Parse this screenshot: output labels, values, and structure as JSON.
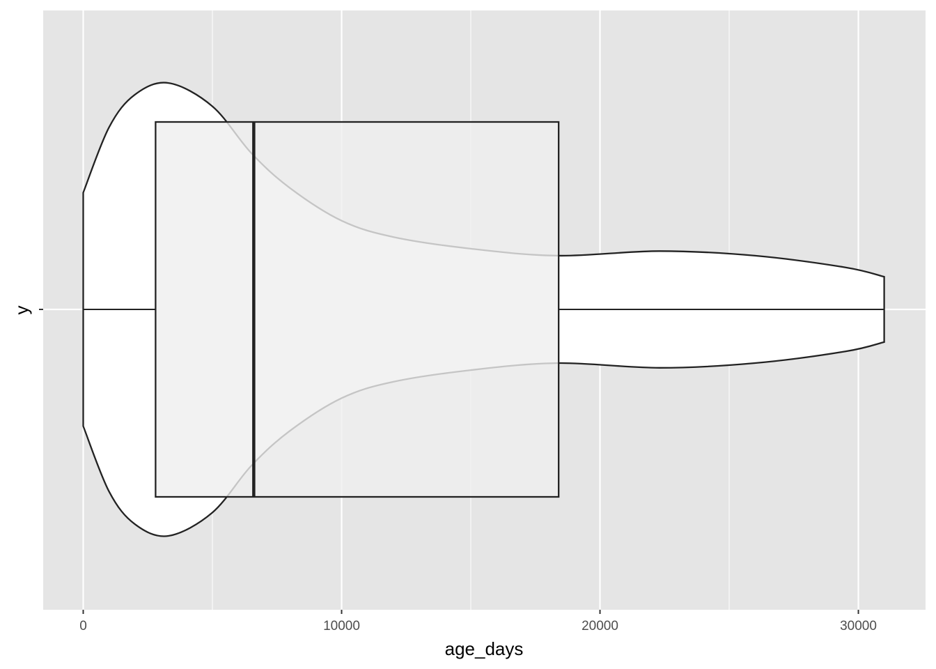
{
  "chart_data": {
    "type": "violin",
    "xlabel": "age_days",
    "ylabel": "y",
    "xlim": [
      -1550,
      32600
    ],
    "x_ticks": [
      0,
      10000,
      20000,
      30000
    ],
    "x_tick_labels": [
      "0",
      "10000",
      "20000",
      "30000"
    ],
    "y_tick_labels": [
      ""
    ],
    "grid": true,
    "panel_background": "#e5e5e5",
    "gridline_color": "#ffffff",
    "violin": {
      "fill": "#ffffff",
      "outline": "#222222",
      "min": 0,
      "max": 31000,
      "density_relative": [
        [
          0,
          0.5
        ],
        [
          1000,
          0.78
        ],
        [
          2000,
          0.92
        ],
        [
          3300,
          0.97
        ],
        [
          5000,
          0.87
        ],
        [
          6500,
          0.67
        ],
        [
          8000,
          0.52
        ],
        [
          10000,
          0.38
        ],
        [
          12000,
          0.31
        ],
        [
          15000,
          0.26
        ],
        [
          18400,
          0.23
        ],
        [
          22300,
          0.25
        ],
        [
          26000,
          0.23
        ],
        [
          29500,
          0.18
        ],
        [
          31000,
          0.14
        ]
      ]
    },
    "boxplot": {
      "fill": "#efefef",
      "fill_opacity": 0.8,
      "outline": "#222222",
      "whisker_low": 0,
      "q1": 2800,
      "median": 6600,
      "q3": 18400,
      "whisker_high": 31000
    }
  }
}
